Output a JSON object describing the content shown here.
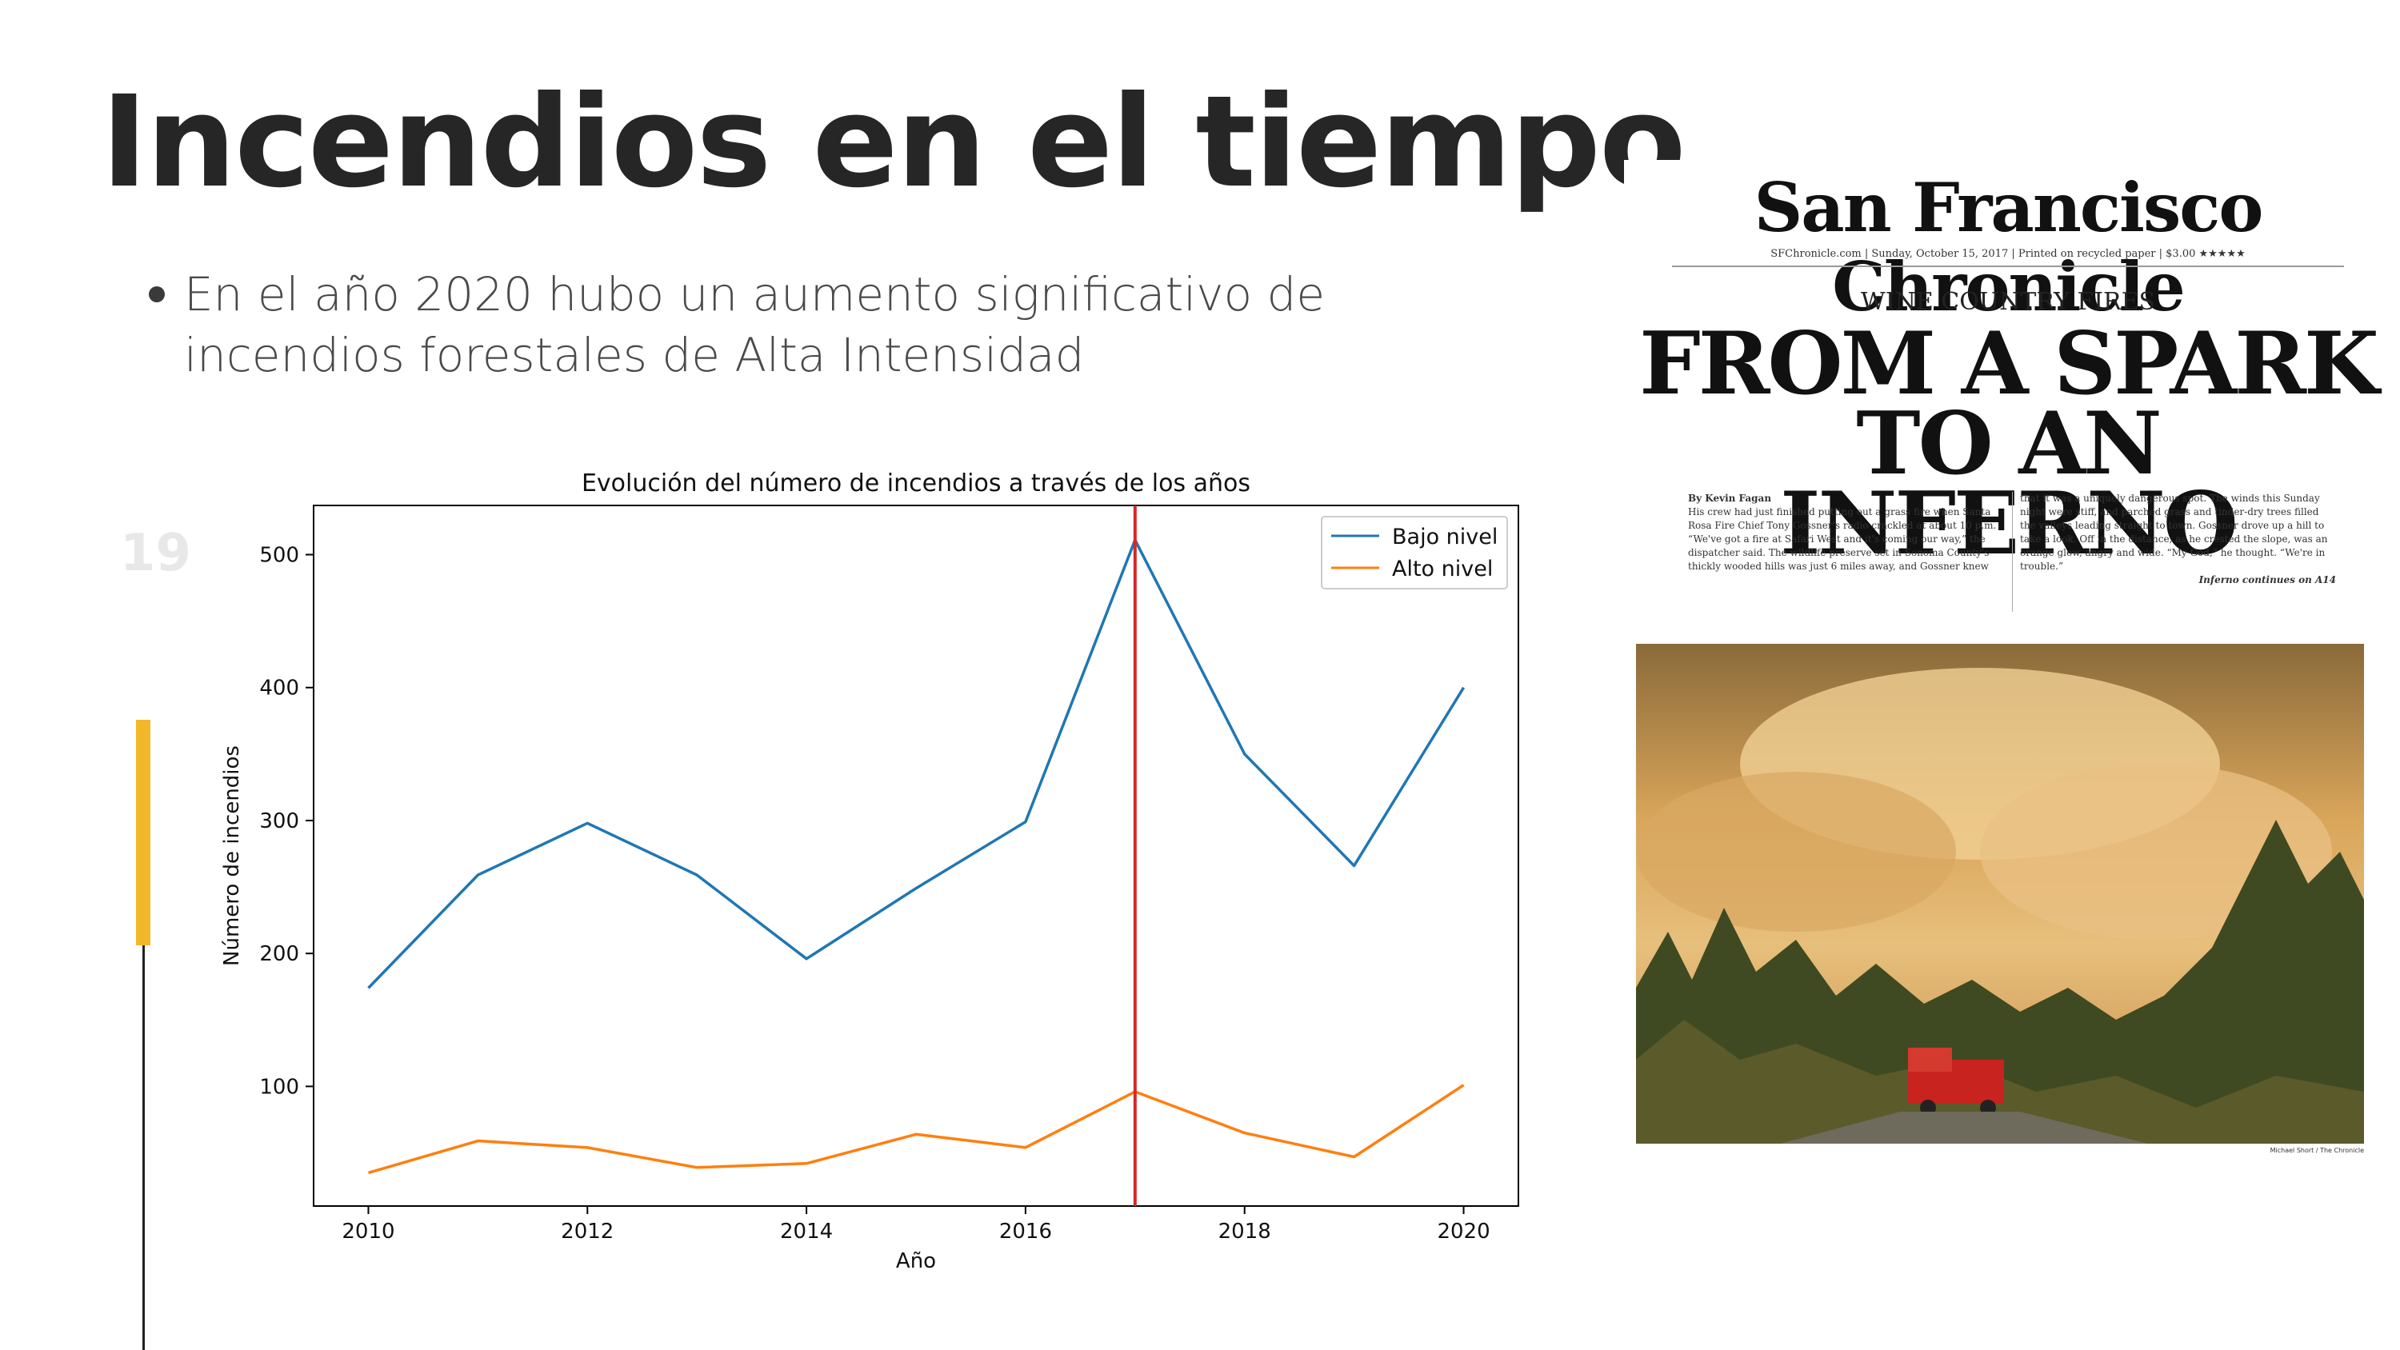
{
  "slide": {
    "title": "Incendios en el tiempo",
    "bullet": "En el año 2020 hubo un aumento significativo de incendios forestales de Alta Intensidad",
    "page_number": "19",
    "accent_color": "#f3b72a"
  },
  "chart_data": {
    "type": "line",
    "title": "Evolución del número de incendios a través de los años",
    "xlabel": "Año",
    "ylabel": "Número de incendios",
    "x": [
      2010,
      2011,
      2012,
      2013,
      2014,
      2015,
      2016,
      2017,
      2018,
      2019,
      2020
    ],
    "series": [
      {
        "name": "Bajo nivel",
        "color": "#1f77b4",
        "values": [
          174,
          259,
          298,
          259,
          196,
          249,
          299,
          511,
          350,
          266,
          400
        ]
      },
      {
        "name": "Alto nivel",
        "color": "#ff7f0e",
        "values": [
          35,
          59,
          54,
          39,
          42,
          64,
          54,
          96,
          65,
          47,
          101
        ]
      }
    ],
    "vline": {
      "x": 2017,
      "color": "#d62728"
    },
    "xticks": [
      2010,
      2012,
      2014,
      2016,
      2018,
      2020
    ],
    "yticks": [
      100,
      200,
      300,
      400,
      500
    ],
    "xlim": [
      2009.5,
      2020.5
    ],
    "ylim": [
      10,
      537
    ],
    "grid": false,
    "legend": "upper right"
  },
  "newspaper": {
    "masthead": "San Francisco Chronicle",
    "dateline": "SFChronicle.com | Sunday, October 15, 2017 | Printed on recycled paper | $3.00 ★★★★★",
    "kicker": "WINE COUNTRY FIRES",
    "headline_line1": "FROM A SPARK",
    "headline_line2": "TO AN INFERNO",
    "byline": "By Kevin Fagan",
    "col1": "His crew had just finished putting out a grass fire when Santa Rosa Fire Chief Tony Gossner's radio crackled at about 10 p.m. “We've got a fire at Safari West and it's coming our way,” the dispatcher said. The wildlife preserve set in Sonoma County's thickly wooded hills was just 6 miles away, and Gossner knew",
    "col2": "that it was a uniquely dangerous spot. The winds this Sunday night were stiff, and parched grass and tinder-dry trees filled the valleys leading straight to town. Gossner drove up a hill to take a look. Off in the distance, as he crested the slope, was an orange glow, angry and wide. “My God,” he thought. “We're in trouble.”",
    "continued": "Inferno continues on A14",
    "photo_credit": "Michael Short / The Chronicle"
  }
}
